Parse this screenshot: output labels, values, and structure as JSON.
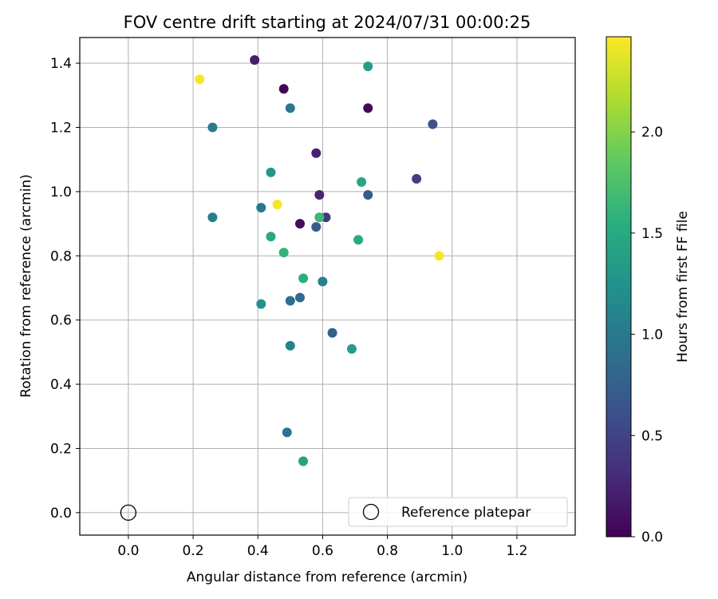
{
  "chart_data": {
    "type": "scatter",
    "title": "FOV centre drift starting at 2024/07/31 00:00:25",
    "xlabel": "Angular distance from reference (arcmin)",
    "ylabel": "Rotation from reference (arcmin)",
    "xlim": [
      -0.15,
      1.38
    ],
    "ylim": [
      -0.07,
      1.48
    ],
    "xticks": [
      0.0,
      0.2,
      0.4,
      0.6,
      0.8,
      1.0,
      1.2
    ],
    "xtick_labels": [
      "0.0",
      "0.2",
      "0.4",
      "0.6",
      "0.8",
      "1.0",
      "1.2"
    ],
    "yticks": [
      0.0,
      0.2,
      0.4,
      0.6,
      0.8,
      1.0,
      1.2,
      1.4
    ],
    "ytick_labels": [
      "0.0",
      "0.2",
      "0.4",
      "0.6",
      "0.8",
      "1.0",
      "1.2",
      "1.4"
    ],
    "grid": true,
    "colormap": "viridis",
    "colorbar": {
      "label": "Hours from first FF file",
      "range": [
        0.0,
        2.47
      ],
      "ticks": [
        0.0,
        0.5,
        1.0,
        1.5,
        2.0
      ],
      "tick_labels": [
        "0.0",
        "0.5",
        "1.0",
        "1.5",
        "2.0"
      ]
    },
    "legend": {
      "location": "lower-right",
      "entries": [
        "Reference platepar"
      ]
    },
    "reference_point": {
      "x": 0.0,
      "y": 0.0
    },
    "points": [
      {
        "x": 0.48,
        "y": 1.32,
        "hours": 0.03
      },
      {
        "x": 0.74,
        "y": 1.26,
        "hours": 0.05
      },
      {
        "x": 0.53,
        "y": 0.9,
        "hours": 0.08
      },
      {
        "x": 0.39,
        "y": 1.41,
        "hours": 0.2
      },
      {
        "x": 0.58,
        "y": 1.12,
        "hours": 0.22
      },
      {
        "x": 0.59,
        "y": 0.99,
        "hours": 0.25
      },
      {
        "x": 0.61,
        "y": 0.92,
        "hours": 0.4
      },
      {
        "x": 0.89,
        "y": 1.04,
        "hours": 0.45
      },
      {
        "x": 0.94,
        "y": 1.21,
        "hours": 0.6
      },
      {
        "x": 0.74,
        "y": 0.99,
        "hours": 0.7
      },
      {
        "x": 0.58,
        "y": 0.89,
        "hours": 0.72
      },
      {
        "x": 0.63,
        "y": 0.56,
        "hours": 0.75
      },
      {
        "x": 0.53,
        "y": 0.67,
        "hours": 0.85
      },
      {
        "x": 0.5,
        "y": 0.66,
        "hours": 0.9
      },
      {
        "x": 0.49,
        "y": 0.25,
        "hours": 0.95
      },
      {
        "x": 0.5,
        "y": 1.26,
        "hours": 0.98
      },
      {
        "x": 0.41,
        "y": 0.95,
        "hours": 1.0
      },
      {
        "x": 0.26,
        "y": 1.2,
        "hours": 1.02
      },
      {
        "x": 0.26,
        "y": 0.92,
        "hours": 1.05
      },
      {
        "x": 0.6,
        "y": 0.72,
        "hours": 1.08
      },
      {
        "x": 0.5,
        "y": 0.52,
        "hours": 1.1
      },
      {
        "x": 0.41,
        "y": 0.65,
        "hours": 1.25
      },
      {
        "x": 0.44,
        "y": 1.06,
        "hours": 1.3
      },
      {
        "x": 0.69,
        "y": 0.51,
        "hours": 1.35
      },
      {
        "x": 0.74,
        "y": 1.39,
        "hours": 1.38
      },
      {
        "x": 0.54,
        "y": 0.16,
        "hours": 1.42
      },
      {
        "x": 0.72,
        "y": 1.03,
        "hours": 1.45
      },
      {
        "x": 0.44,
        "y": 0.86,
        "hours": 1.5
      },
      {
        "x": 0.71,
        "y": 0.85,
        "hours": 1.52
      },
      {
        "x": 0.54,
        "y": 0.73,
        "hours": 1.55
      },
      {
        "x": 0.48,
        "y": 0.81,
        "hours": 1.6
      },
      {
        "x": 0.59,
        "y": 0.92,
        "hours": 1.65
      },
      {
        "x": 0.22,
        "y": 1.35,
        "hours": 2.45
      },
      {
        "x": 0.46,
        "y": 0.96,
        "hours": 2.45
      },
      {
        "x": 0.96,
        "y": 0.8,
        "hours": 2.45
      }
    ]
  }
}
